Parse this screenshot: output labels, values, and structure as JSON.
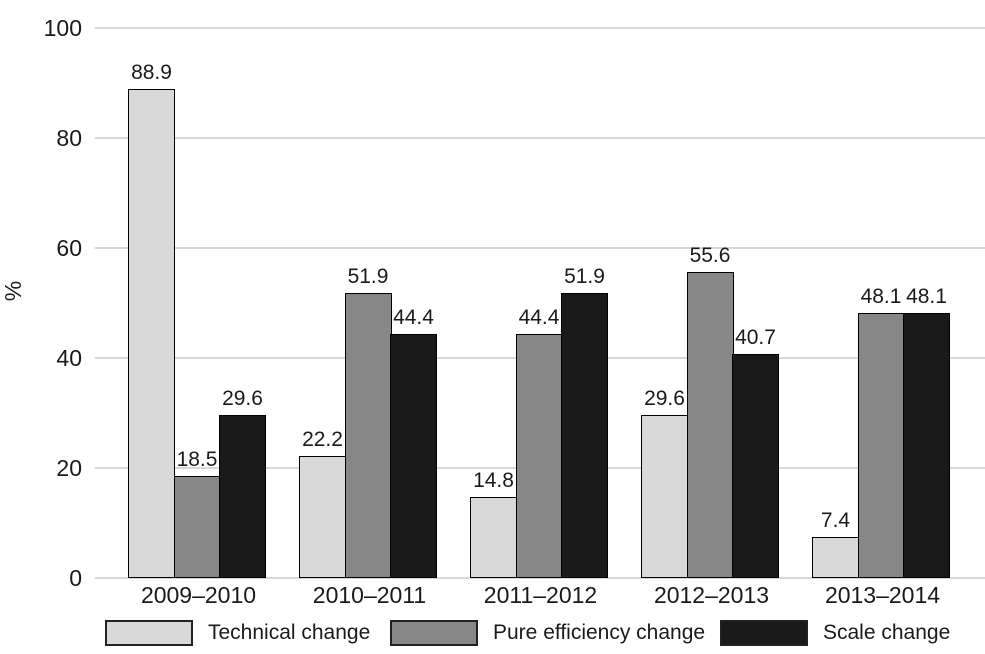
{
  "chart_data": {
    "type": "bar",
    "categories": [
      "2009–2010",
      "2010–2011",
      "2011–2012",
      "2012–2013",
      "2013–2014"
    ],
    "series": [
      {
        "name": "Technical change",
        "color": "#d9d9d9",
        "values": [
          88.9,
          22.2,
          14.8,
          29.6,
          7.4
        ]
      },
      {
        "name": "Pure efficiency change",
        "color": "#878787",
        "values": [
          18.5,
          51.9,
          44.4,
          55.6,
          48.1
        ]
      },
      {
        "name": "Scale change",
        "color": "#1a1a1a",
        "values": [
          29.6,
          44.4,
          51.9,
          40.7,
          48.1
        ]
      }
    ],
    "title": "",
    "xlabel": "",
    "ylabel": "%",
    "ylim": [
      0,
      100
    ],
    "yticks": [
      0,
      20,
      40,
      60,
      80,
      100
    ],
    "grid": true,
    "legend_position": "bottom",
    "bar_labels_decimals": 1
  },
  "colors": {
    "background": "#ffffff",
    "gridline": "#d8d8d8",
    "bar_border": "#000000",
    "text": "#1a1a1a"
  }
}
